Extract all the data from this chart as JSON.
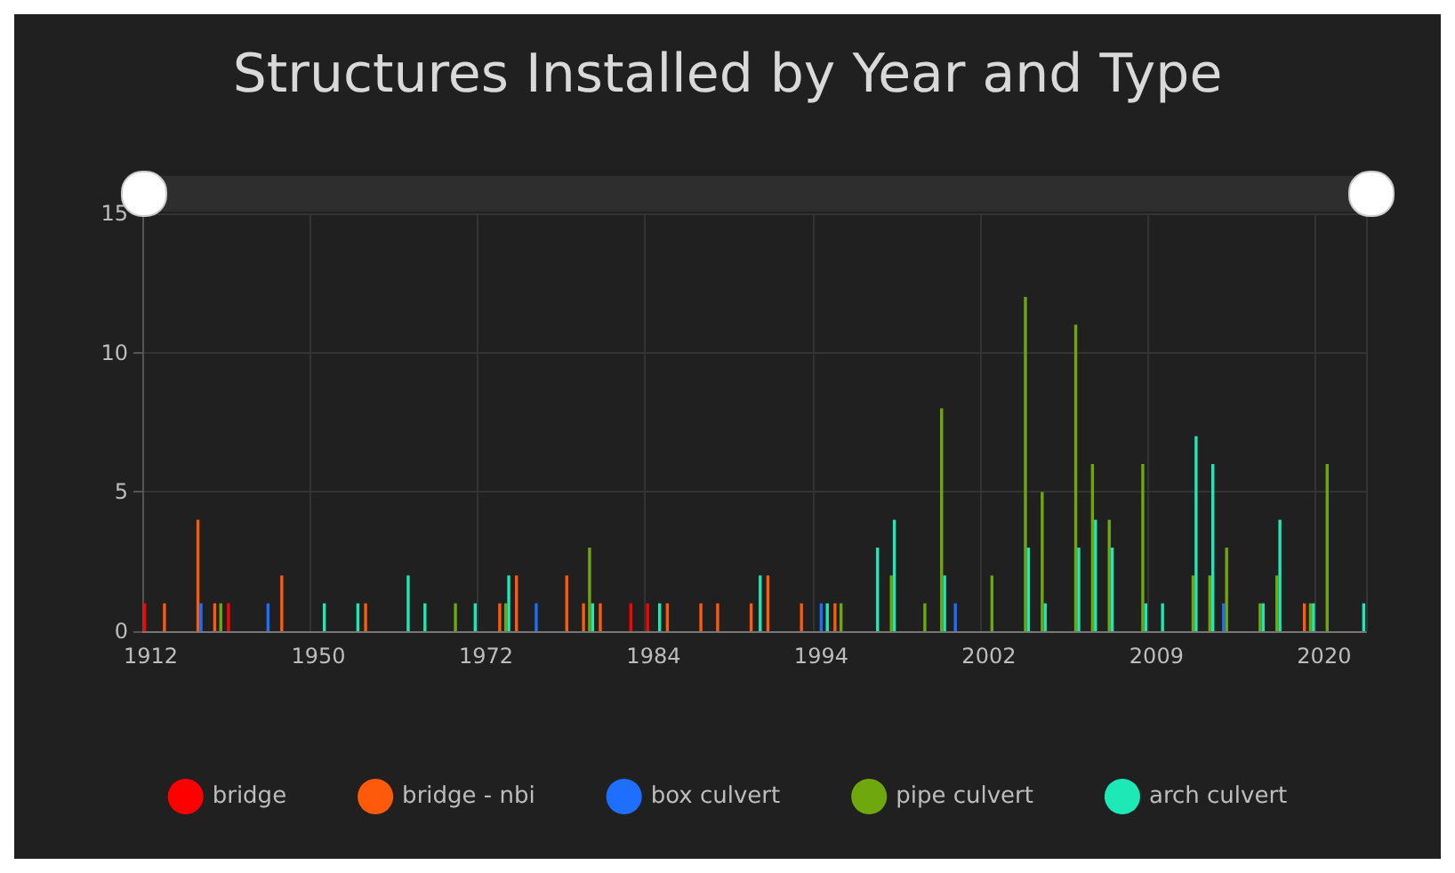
{
  "chart_data": {
    "type": "bar",
    "title": "Structures Installed by Year and Type",
    "categories": [
      "1912",
      null,
      null,
      null,
      null,
      null,
      null,
      null,
      null,
      null,
      "1950",
      null,
      null,
      null,
      null,
      null,
      null,
      null,
      null,
      null,
      "1972",
      null,
      null,
      null,
      null,
      null,
      null,
      null,
      null,
      null,
      "1984",
      null,
      null,
      null,
      null,
      null,
      null,
      null,
      null,
      null,
      "1994",
      null,
      null,
      null,
      null,
      null,
      null,
      null,
      null,
      null,
      "2002",
      null,
      null,
      null,
      null,
      null,
      null,
      null,
      null,
      null,
      "2009",
      null,
      null,
      null,
      null,
      null,
      null,
      null,
      null,
      null,
      "2020",
      null,
      null
    ],
    "series": [
      {
        "name": "bridge",
        "color": "#ff0000",
        "values": [
          1,
          null,
          null,
          null,
          null,
          1,
          null,
          null,
          null,
          null,
          null,
          null,
          null,
          null,
          null,
          null,
          null,
          null,
          null,
          null,
          null,
          null,
          null,
          null,
          null,
          null,
          null,
          null,
          null,
          1,
          1,
          null,
          null,
          null,
          null,
          null,
          null,
          null,
          null,
          null,
          null,
          null,
          null,
          null,
          null,
          null,
          null,
          null,
          null,
          null,
          null,
          null,
          null,
          null,
          null,
          null,
          null,
          null,
          null,
          null,
          null,
          null,
          null,
          null,
          null,
          null,
          null,
          null,
          null,
          null,
          null,
          null,
          null
        ]
      },
      {
        "name": "bridge - nbi",
        "color": "#ff5a0a",
        "values": [
          null,
          1,
          null,
          4,
          1,
          null,
          null,
          null,
          2,
          null,
          null,
          null,
          null,
          1,
          null,
          null,
          null,
          null,
          null,
          null,
          null,
          1,
          2,
          null,
          null,
          2,
          1,
          1,
          null,
          null,
          null,
          1,
          null,
          1,
          1,
          null,
          1,
          2,
          null,
          1,
          null,
          1,
          null,
          null,
          null,
          null,
          null,
          null,
          null,
          null,
          null,
          null,
          null,
          null,
          null,
          null,
          null,
          null,
          null,
          null,
          null,
          null,
          null,
          null,
          null,
          null,
          null,
          null,
          null,
          1,
          null,
          null,
          null
        ]
      },
      {
        "name": "box culvert",
        "color": "#1e6fff",
        "values": [
          null,
          null,
          null,
          1,
          null,
          null,
          null,
          1,
          null,
          null,
          null,
          null,
          null,
          null,
          null,
          null,
          null,
          null,
          null,
          null,
          null,
          null,
          null,
          1,
          null,
          null,
          null,
          null,
          null,
          null,
          null,
          null,
          null,
          null,
          null,
          null,
          null,
          null,
          null,
          null,
          1,
          null,
          null,
          null,
          null,
          null,
          null,
          null,
          1,
          null,
          null,
          null,
          null,
          null,
          null,
          null,
          null,
          null,
          null,
          null,
          null,
          null,
          null,
          null,
          1,
          null,
          null,
          null,
          null,
          null,
          null,
          null,
          null
        ]
      },
      {
        "name": "pipe culvert",
        "color": "#6fa80c",
        "values": [
          null,
          null,
          null,
          null,
          1,
          null,
          null,
          null,
          null,
          null,
          null,
          null,
          null,
          null,
          null,
          null,
          null,
          null,
          1,
          null,
          null,
          1,
          null,
          null,
          null,
          null,
          3,
          null,
          null,
          null,
          null,
          null,
          null,
          null,
          null,
          null,
          null,
          null,
          null,
          null,
          null,
          1,
          null,
          null,
          2,
          null,
          1,
          8,
          null,
          null,
          2,
          null,
          12,
          5,
          null,
          11,
          6,
          4,
          null,
          6,
          null,
          null,
          2,
          2,
          3,
          null,
          1,
          2,
          null,
          1,
          6,
          null,
          null
        ]
      },
      {
        "name": "arch culvert",
        "color": "#1de9b6",
        "values": [
          null,
          null,
          null,
          null,
          null,
          null,
          null,
          null,
          null,
          null,
          1,
          null,
          1,
          null,
          null,
          2,
          1,
          null,
          null,
          1,
          null,
          2,
          null,
          null,
          null,
          null,
          1,
          null,
          null,
          null,
          1,
          null,
          null,
          null,
          null,
          null,
          2,
          null,
          null,
          null,
          1,
          null,
          null,
          3,
          4,
          null,
          null,
          2,
          null,
          null,
          null,
          null,
          3,
          1,
          null,
          3,
          4,
          3,
          null,
          1,
          1,
          null,
          7,
          6,
          null,
          null,
          1,
          4,
          null,
          1,
          null,
          null,
          1
        ]
      }
    ],
    "ylim": [
      0,
      15
    ],
    "yticks": [
      0,
      5,
      10,
      15
    ],
    "grid": true,
    "legend": "bottom"
  }
}
